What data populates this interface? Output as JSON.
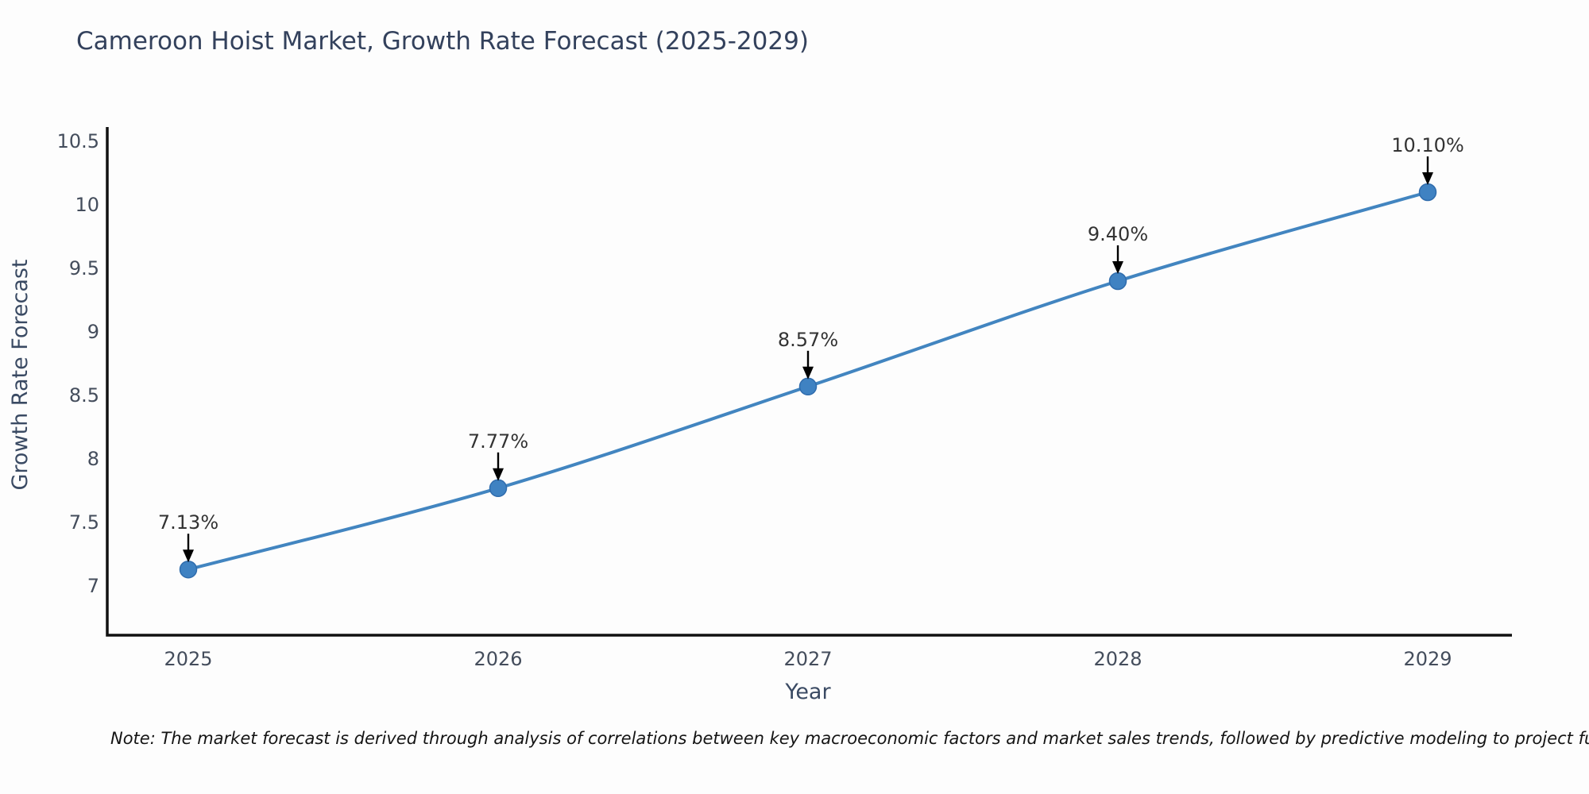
{
  "header": {
    "title": "Cameroon Hoist Market, Growth Rate Forecast (2025-2029)"
  },
  "footnote": {
    "text": "Note: The market forecast is derived through analysis of correlations between key macroeconomic factors and market sales trends, followed by predictive modeling to project future sal"
  },
  "chart_data": {
    "type": "line",
    "title": "Cameroon Hoist Market, Growth Rate Forecast (2025-2029)",
    "xlabel": "Year",
    "ylabel": "Growth Rate Forecast",
    "categories": [
      "2025",
      "2026",
      "2027",
      "2028",
      "2029"
    ],
    "series": [
      {
        "name": "Growth Rate Forecast",
        "values": [
          7.13,
          7.77,
          8.57,
          9.4,
          10.1
        ]
      }
    ],
    "point_labels": [
      "7.13%",
      "7.77%",
      "8.57%",
      "9.40%",
      "10.10%"
    ],
    "y_ticks": [
      "7",
      "7.5",
      "8",
      "8.5",
      "9",
      "9.5",
      "10",
      "10.5"
    ],
    "ylim": [
      6.6,
      10.62
    ],
    "grid": false,
    "legend_position": "none",
    "marker_style": "circle-with-down-arrow-annotation",
    "colors": {
      "line": "#4285c0",
      "marker_fill": "#3f82c2",
      "marker_edge": "#2f6cad",
      "axis": "#111111",
      "title_text": "#33415c",
      "axis_title_text": "#3a4a63",
      "tick_text": "#444d5c",
      "annotation_text": "#333333",
      "annotation_arrow": "#000000",
      "note_text": "#141414",
      "background": "#fdfdfd"
    }
  }
}
